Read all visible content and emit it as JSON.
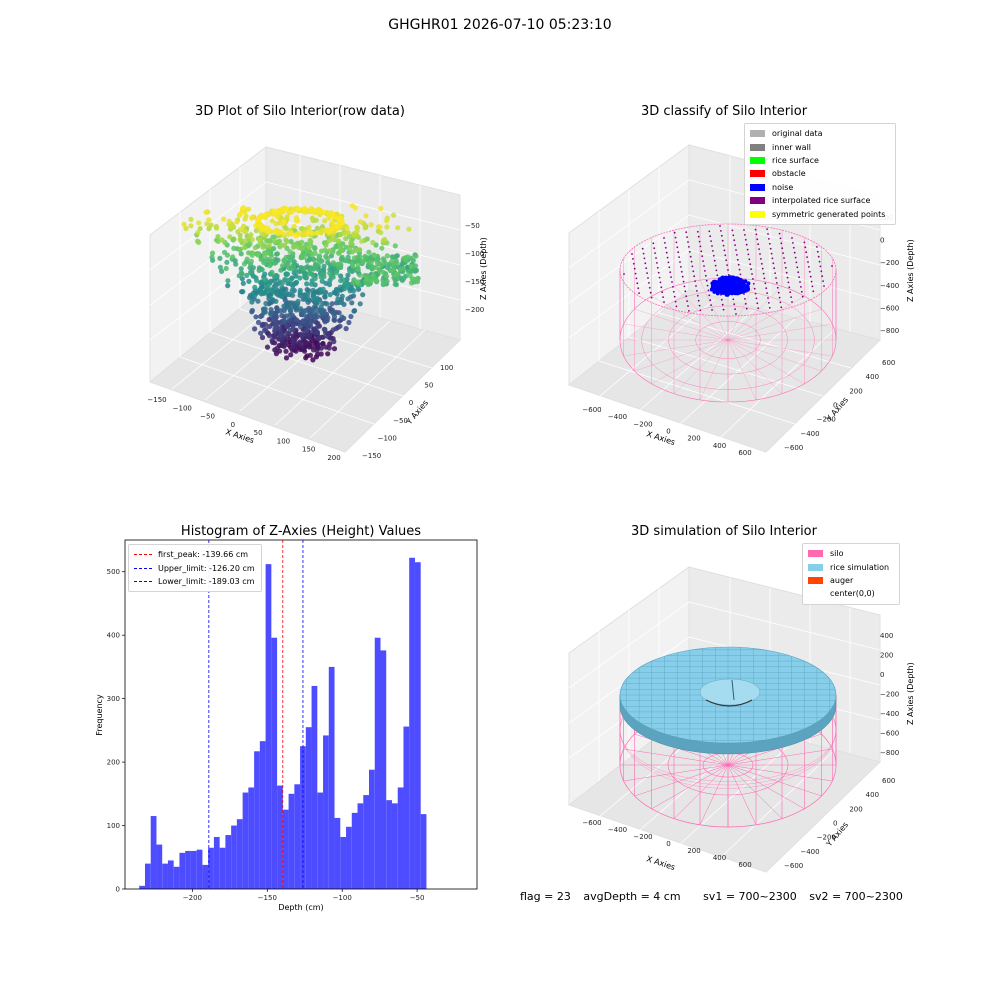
{
  "page_title": "GHGHR01 2026-07-10 05:23:10",
  "footer": {
    "flag": "flag = 23",
    "avg_depth": "avgDepth = 4 cm",
    "sv1": "sv1 = 700~2300",
    "sv2": "sv2 = 700~2300"
  },
  "chart_data": [
    {
      "type": "scatter",
      "title": "3D Plot of Silo Interior(row data)",
      "xlabel": "X Axies",
      "ylabel": "Y Axies",
      "zlabel": "Z Axies (Depth)",
      "x_ticks": [
        "−150",
        "−100",
        "−50",
        "0",
        "50",
        "100",
        "150",
        "200"
      ],
      "y_ticks": [
        "−150",
        "−100",
        "−50",
        "0",
        "50",
        "100"
      ],
      "z_ticks": [
        "−50",
        "−100",
        "−150",
        "−200"
      ],
      "colormap": "viridis",
      "grid": true
    },
    {
      "type": "scatter",
      "title": "3D classify of Silo Interior",
      "xlabel": "X Axies",
      "ylabel": "Y Axies",
      "zlabel": "Z Axies (Depth)",
      "x_ticks": [
        "−600",
        "−400",
        "−200",
        "0",
        "200",
        "400",
        "600"
      ],
      "y_ticks": [
        "−600",
        "−400",
        "−200",
        "0",
        "200",
        "400",
        "600"
      ],
      "z_ticks": [
        "200",
        "0",
        "−200",
        "−400",
        "−600",
        "−800"
      ],
      "legend": [
        {
          "label": "original data",
          "color": "#b0b0b0"
        },
        {
          "label": "inner wall",
          "color": "#808080"
        },
        {
          "label": "rice surface",
          "color": "#00ff00"
        },
        {
          "label": "obstacle",
          "color": "#ff0000"
        },
        {
          "label": "noise",
          "color": "#0000ff"
        },
        {
          "label": "interpolated rice surface",
          "color": "#800080"
        },
        {
          "label": "symmetric generated points",
          "color": "#ffff00"
        }
      ],
      "legend_position": "top-right",
      "grid": true
    },
    {
      "type": "bar",
      "title": "Histogram of Z-Axies (Height) Values",
      "xlabel": "Depth (cm)",
      "ylabel": "Frequency",
      "xlim": [
        -245,
        -10
      ],
      "ylim": [
        0,
        550
      ],
      "x_ticks": [
        -200,
        -150,
        -100,
        -50
      ],
      "x_tick_labels": [
        "−200",
        "−150",
        "−100",
        "−50"
      ],
      "y_ticks": [
        0,
        100,
        200,
        300,
        400,
        500
      ],
      "bin_start": -235.5,
      "bin_width": 3.835,
      "values": [
        5,
        40,
        115,
        70,
        40,
        45,
        35,
        57,
        60,
        60,
        62,
        38,
        65,
        82,
        65,
        85,
        100,
        110,
        152,
        160,
        217,
        233,
        512,
        396,
        163,
        125,
        150,
        165,
        225,
        255,
        320,
        152,
        242,
        350,
        112,
        82,
        98,
        120,
        135,
        148,
        188,
        396,
        376,
        140,
        135,
        160,
        256,
        522,
        515,
        118
      ],
      "bar_color": "#4d4dff",
      "vlines": [
        {
          "label": "first_peak: -139.66 cm",
          "x": -139.66,
          "color": "#ff0000"
        },
        {
          "label": "Upper_limit: -126.20 cm",
          "x": -126.2,
          "color": "#0000ff"
        },
        {
          "label": "Lower_limit: -189.03 cm",
          "x": -189.03,
          "color": "#0000ff"
        }
      ],
      "legend_position": "top-left"
    },
    {
      "type": "scatter",
      "title": "3D simulation of Silo Interior",
      "xlabel": "X Axies",
      "ylabel": "Y Axies",
      "zlabel": "Z Axies (Depth)",
      "x_ticks": [
        "−600",
        "−400",
        "−200",
        "0",
        "200",
        "400",
        "600"
      ],
      "y_ticks": [
        "−600",
        "−400",
        "−200",
        "0",
        "200",
        "400",
        "600"
      ],
      "z_ticks": [
        "400",
        "200",
        "0",
        "−200",
        "−400",
        "−600",
        "−800"
      ],
      "legend": [
        {
          "label": "silo",
          "color": "#ff69b4"
        },
        {
          "label": "rice simulation",
          "color": "#87ceeb"
        },
        {
          "label": "auger",
          "color": "#ff4500"
        },
        {
          "label": "center(0,0)",
          "color": "#ffffff"
        }
      ],
      "legend_position": "top-right",
      "grid": true
    }
  ]
}
